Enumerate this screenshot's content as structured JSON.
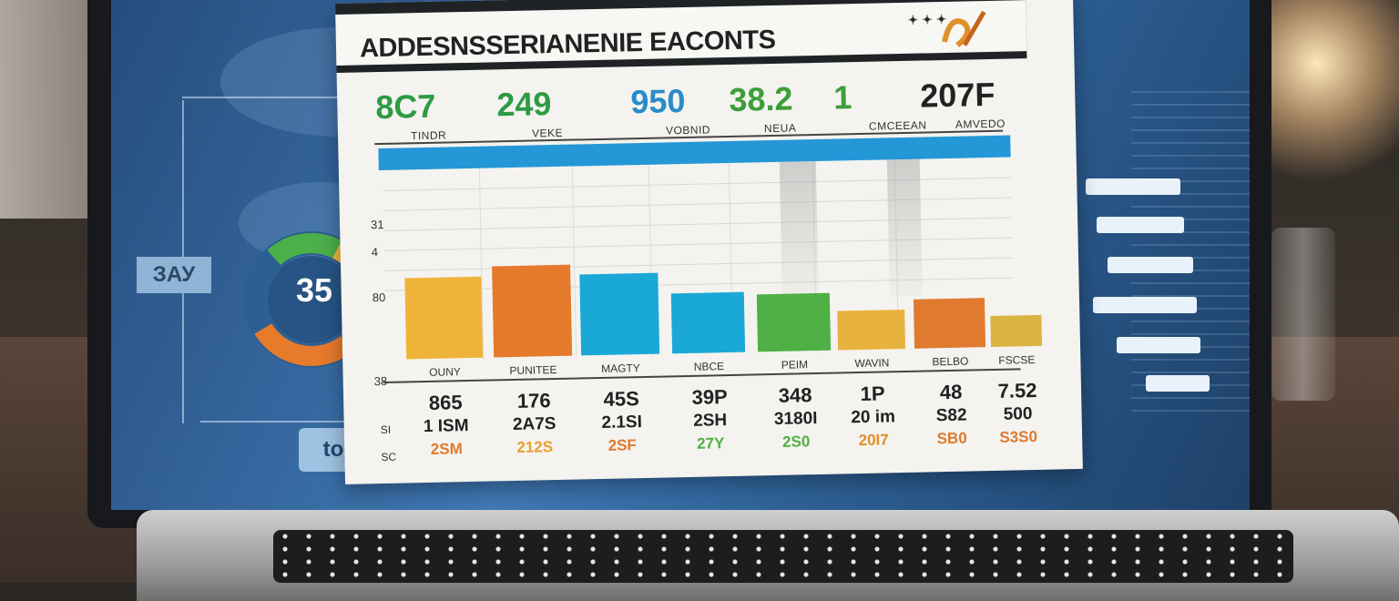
{
  "report": {
    "title": "ADDESNSSERIANENIE EACONTS",
    "logo_text": "✦ ✦ ✦",
    "kpis": [
      {
        "value": "8C7",
        "label": "TINDR",
        "color": "#2e9a45"
      },
      {
        "value": "249",
        "label": "VEKE",
        "color": "#2e9a45"
      },
      {
        "value": "950",
        "label": "VOBNID",
        "color": "#2a8bc9"
      },
      {
        "value": "38.2",
        "label": "NEUA",
        "color": "#3e9e3a"
      },
      {
        "value": "1",
        "label": "CMCEEAN",
        "color": "#3e9e3a"
      },
      {
        "value": "207F",
        "label": "AMVEDO",
        "color": "#222222"
      }
    ],
    "y_ticks": [
      "31",
      "4",
      "80",
      "38"
    ],
    "categories": [
      "OUNY",
      "PUNITEE",
      "MAGTY",
      "NBCE",
      "PEIM",
      "WAVIN",
      "BELBO",
      "FSCSE"
    ],
    "row_labels": [
      "SI",
      "SC"
    ],
    "rows": [
      [
        "865",
        "176",
        "45S",
        "39P",
        "348",
        "1P",
        "48",
        "7.52"
      ],
      [
        "1 ISM",
        "2A7S",
        "2.1SI",
        "2SH",
        "3180I",
        "20 im",
        "S82",
        "500"
      ],
      [
        "2SM",
        "212S",
        "2SF",
        "27Y",
        "2S0",
        "20I7",
        "SB0",
        "S3S0"
      ]
    ]
  },
  "chart_data": {
    "type": "bar",
    "categories": [
      "OUNY",
      "PUNITEE",
      "MAGTY",
      "NBCE",
      "PEIM",
      "WAVIN",
      "BELBO",
      "FSCSE"
    ],
    "values": [
      62,
      70,
      62,
      46,
      44,
      30,
      38,
      24
    ],
    "colors": [
      "#f0b33a",
      "#e57a2c",
      "#1aa8d6",
      "#1aa8d6",
      "#4fb045",
      "#e8b23e",
      "#e07a2e",
      "#d9b442"
    ],
    "ylim": [
      0,
      100
    ]
  },
  "dashboard": {
    "donut_value": "35",
    "side_label": "ЗАУ",
    "to_label": "to",
    "donut_colors": [
      "#4cb04a",
      "#f0b840",
      "#e77a2b"
    ]
  }
}
